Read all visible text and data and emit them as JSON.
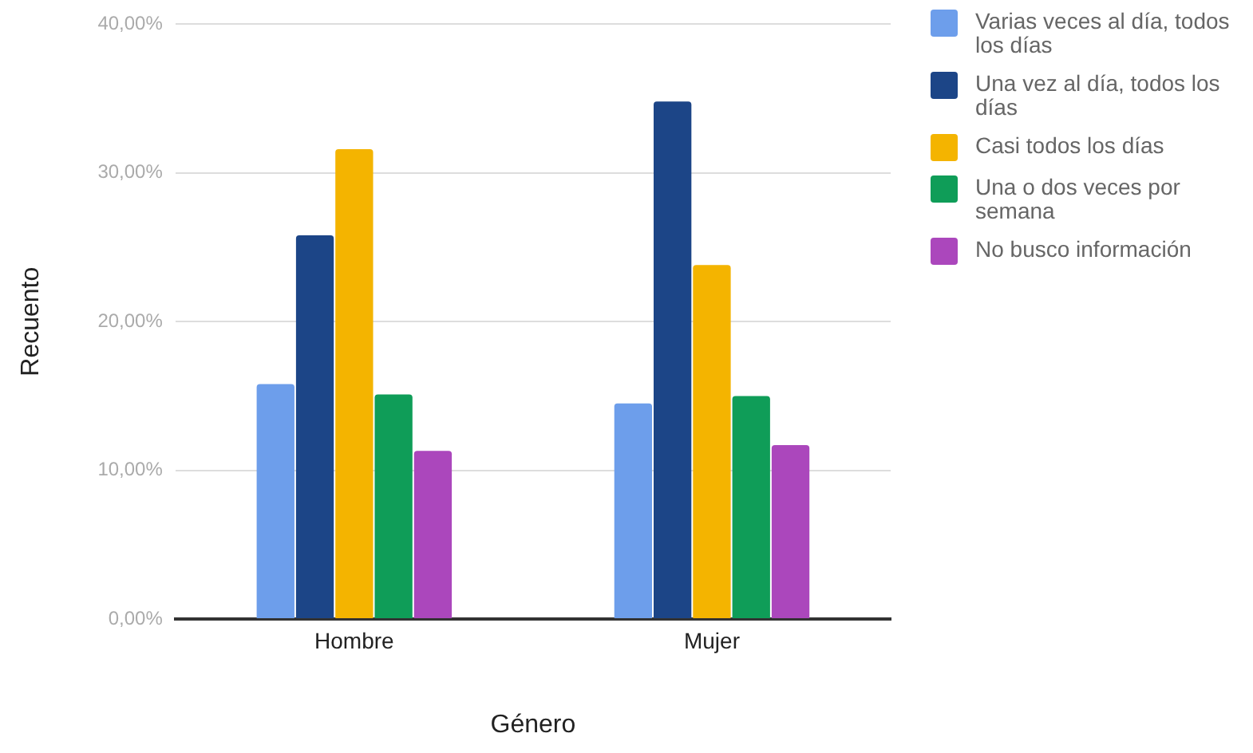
{
  "chart_data": {
    "type": "bar",
    "xlabel": "Género",
    "ylabel": "Recuento",
    "categories": [
      "Hombre",
      "Mujer"
    ],
    "series": [
      {
        "name": "Varias veces al día, todos los días",
        "color": "#6d9eeb",
        "values": [
          15.8,
          14.5
        ]
      },
      {
        "name": "Una vez al día, todos los días",
        "color": "#1c4587",
        "values": [
          25.8,
          34.8
        ]
      },
      {
        "name": "Casi todos los días",
        "color": "#f4b400",
        "values": [
          31.6,
          23.8
        ]
      },
      {
        "name": "Una o dos veces por semana",
        "color": "#0f9d58",
        "values": [
          15.1,
          15.0
        ]
      },
      {
        "name": "No busco información",
        "color": "#ab47bc",
        "values": [
          11.3,
          11.7
        ]
      }
    ],
    "ylim": [
      0,
      40
    ],
    "yticks": [
      {
        "value": 0,
        "label": "0,00%"
      },
      {
        "value": 10,
        "label": "10,00%"
      },
      {
        "value": 20,
        "label": "20,00%"
      },
      {
        "value": 30,
        "label": "30,00%"
      },
      {
        "value": 40,
        "label": "40,00%"
      }
    ],
    "grid": "y",
    "legend": "right"
  }
}
